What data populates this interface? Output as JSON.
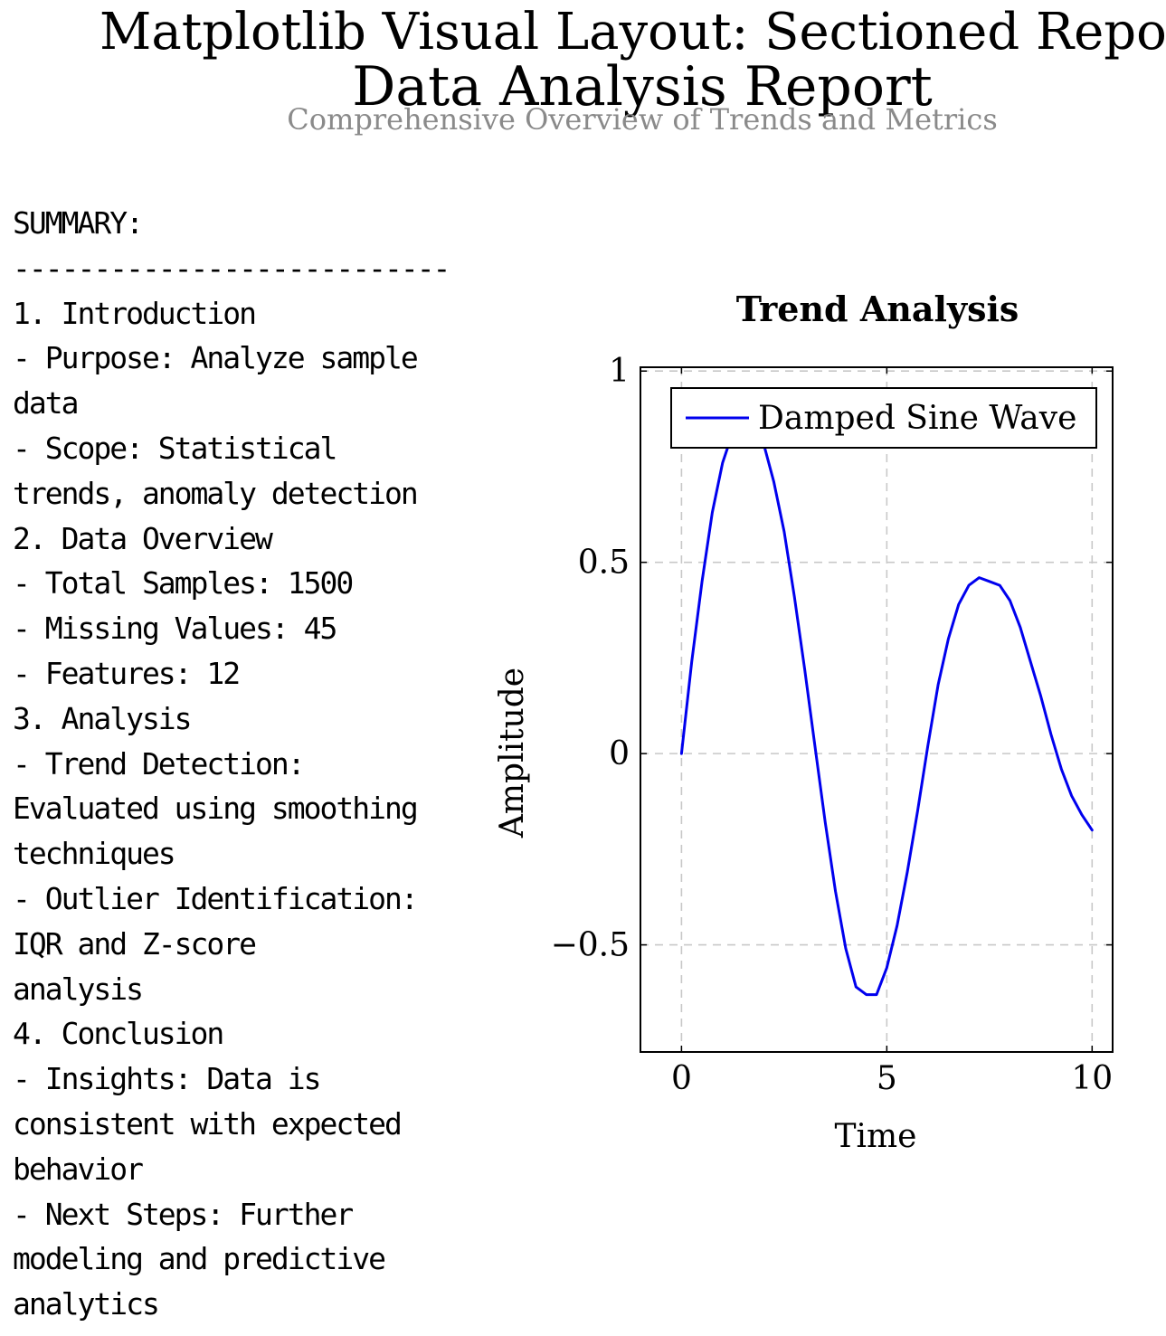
{
  "page": {
    "suptitle": "Matplotlib Visual Layout: Sectioned Report",
    "title": "Data Analysis Report",
    "subtitle": "Comprehensive Overview of Trends and Metrics"
  },
  "summary": {
    "lines": [
      "SUMMARY:",
      "---------------------------",
      "1. Introduction",
      "- Purpose: Analyze sample",
      "data",
      "- Scope: Statistical",
      "trends, anomaly detection",
      "2. Data Overview",
      "- Total Samples: 1500",
      "- Missing Values: 45",
      "- Features: 12",
      "3. Analysis",
      "- Trend Detection:",
      "Evaluated using smoothing",
      "techniques",
      "- Outlier Identification:",
      "IQR and Z-score",
      "analysis",
      "4. Conclusion",
      "- Insights: Data is",
      "consistent with expected",
      "behavior",
      "- Next Steps: Further",
      "modeling and predictive",
      "analytics"
    ]
  },
  "chart_data": {
    "type": "line",
    "title": "Trend Analysis",
    "xlabel": "Time",
    "ylabel": "Amplitude",
    "xlim": [
      -1,
      10.5
    ],
    "ylim": [
      -0.78,
      1.01
    ],
    "xticks": [
      "0",
      "5",
      "10"
    ],
    "yticks": [
      "−0.5",
      "0",
      "0.5",
      "1"
    ],
    "grid": true,
    "grid_style": "dashed",
    "legend_position": "upper-right",
    "series": [
      {
        "name": "Damped Sine Wave",
        "color": "#0000ee",
        "x": [
          0,
          0.25,
          0.5,
          0.75,
          1.0,
          1.25,
          1.5,
          1.75,
          2.0,
          2.25,
          2.5,
          2.75,
          3.0,
          3.25,
          3.5,
          3.75,
          4.0,
          4.25,
          4.5,
          4.75,
          5.0,
          5.25,
          5.5,
          5.75,
          6.0,
          6.25,
          6.5,
          6.75,
          7.0,
          7.25,
          7.5,
          7.75,
          8.0,
          8.25,
          8.5,
          8.75,
          9.0,
          9.25,
          9.5,
          9.75,
          10.0
        ],
        "y": [
          0,
          0.24,
          0.45,
          0.63,
          0.76,
          0.84,
          0.87,
          0.86,
          0.81,
          0.71,
          0.58,
          0.41,
          0.22,
          0.02,
          -0.18,
          -0.36,
          -0.51,
          -0.61,
          -0.63,
          -0.63,
          -0.56,
          -0.45,
          -0.31,
          -0.15,
          0.02,
          0.18,
          0.3,
          0.39,
          0.44,
          0.46,
          0.45,
          0.44,
          0.4,
          0.33,
          0.24,
          0.15,
          0.05,
          -0.04,
          -0.11,
          -0.16,
          -0.2
        ]
      }
    ]
  }
}
